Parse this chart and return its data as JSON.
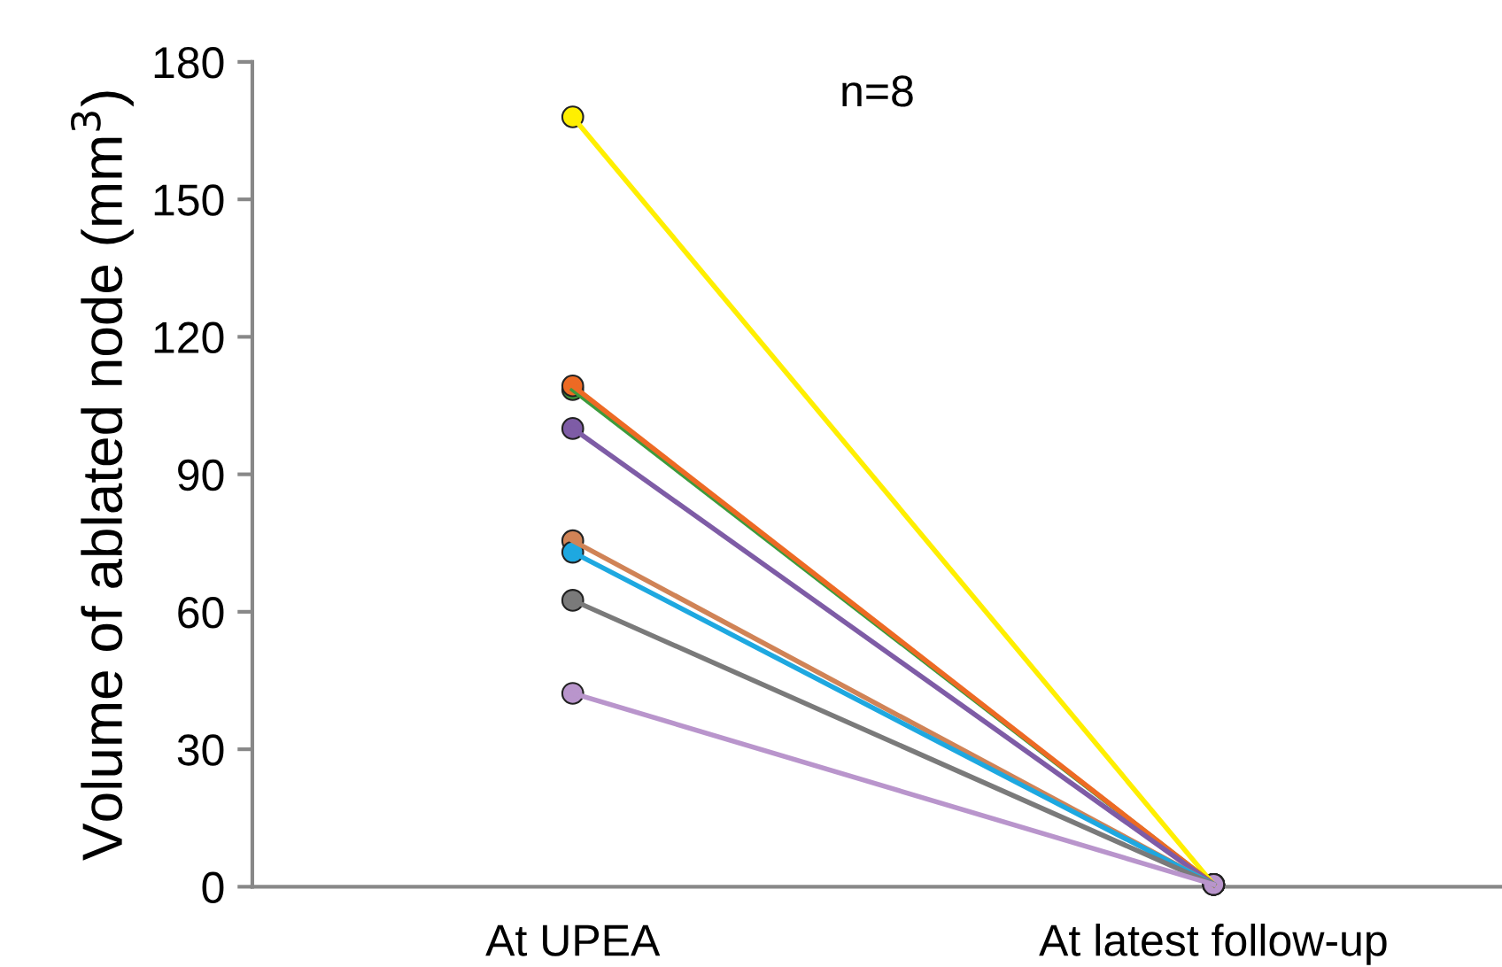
{
  "chart_data": {
    "type": "line",
    "ylabel": "Volume of ablated node (mm$^{3}$)",
    "categories": [
      "At UPEA",
      "At latest follow-up"
    ],
    "annotations": [
      "n=8"
    ],
    "ylim": [
      0,
      180
    ],
    "yticks": [
      0,
      30,
      60,
      90,
      120,
      150,
      180
    ],
    "grid": false,
    "legend": false,
    "marker": "circle",
    "line_style": "solid",
    "series": [
      {
        "color": "#ffef00",
        "values": [
          168,
          0.5
        ]
      },
      {
        "color": "#3c9b3c",
        "values": [
          108.5,
          0.5
        ]
      },
      {
        "color": "#ed6a24",
        "values": [
          109.3,
          0.5
        ]
      },
      {
        "color": "#7e5ca6",
        "values": [
          100,
          0.5
        ]
      },
      {
        "color": "#d08356",
        "values": [
          75.5,
          0.5
        ]
      },
      {
        "color": "#1ea8e0",
        "values": [
          73,
          0.5
        ]
      },
      {
        "color": "#7a7a7a",
        "values": [
          62.5,
          0.5
        ]
      },
      {
        "color": "#b995cc",
        "values": [
          42.2,
          0.5
        ]
      }
    ]
  }
}
